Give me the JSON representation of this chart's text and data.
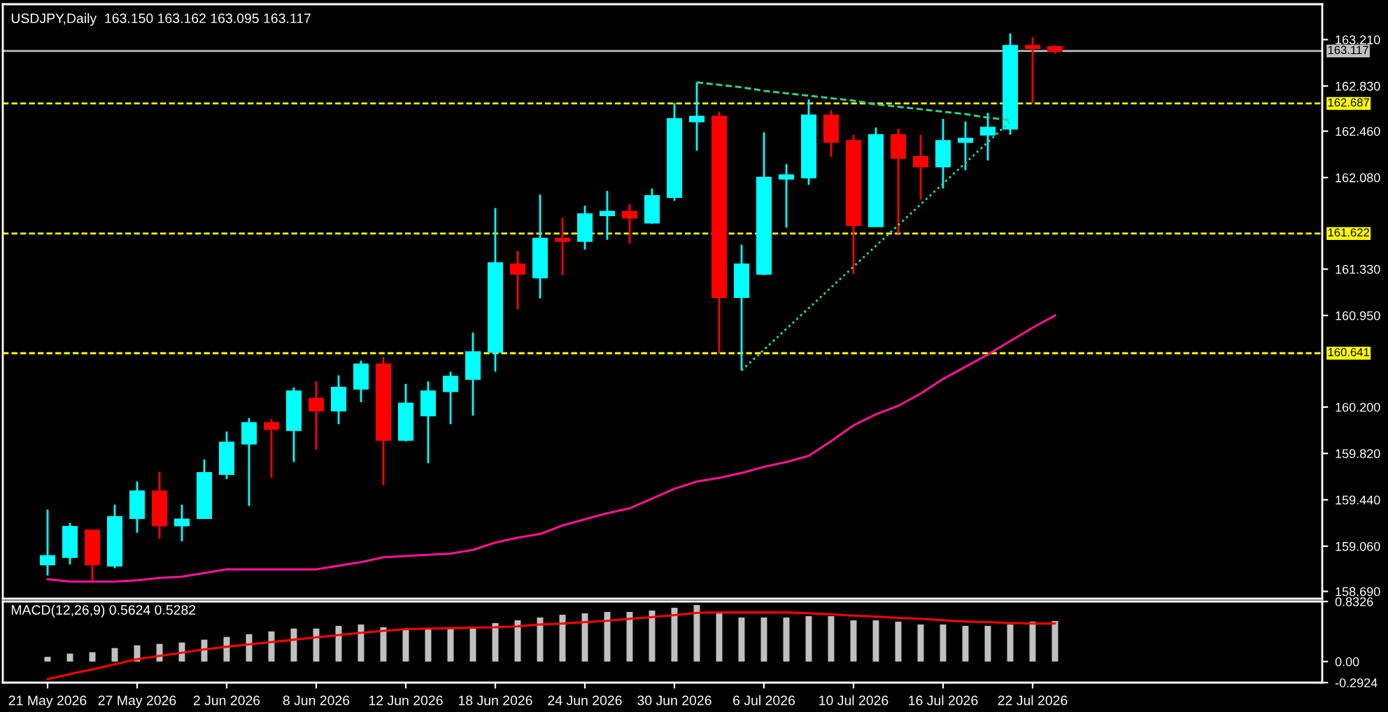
{
  "chart_data": [
    {
      "type": "candlestick",
      "title": "USDJPY,Daily  163.150 163.162 163.095 163.117",
      "categories": [
        null,
        null,
        null,
        null,
        null,
        null,
        null,
        null,
        null,
        null,
        null,
        null,
        null,
        null,
        null,
        null,
        null,
        null,
        null,
        null,
        null,
        null,
        null,
        null,
        null,
        null,
        null,
        null,
        null,
        null,
        null,
        null,
        null,
        null,
        null,
        null,
        null,
        null,
        null,
        null,
        null,
        null,
        null,
        null,
        null,
        null
      ],
      "ohlc": [
        [
          158.91,
          159.36,
          158.82,
          158.98
        ],
        [
          158.97,
          159.25,
          158.91,
          159.22
        ],
        [
          159.19,
          159.19,
          158.76,
          158.91
        ],
        [
          158.9,
          159.4,
          158.88,
          159.3
        ],
        [
          159.29,
          159.59,
          159.17,
          159.51
        ],
        [
          159.51,
          159.67,
          159.12,
          159.23
        ],
        [
          159.23,
          159.4,
          159.1,
          159.28
        ],
        [
          159.29,
          159.77,
          159.29,
          159.66
        ],
        [
          159.65,
          160.0,
          159.61,
          159.91
        ],
        [
          159.9,
          160.11,
          159.39,
          160.07
        ],
        [
          160.07,
          160.1,
          159.62,
          160.02
        ],
        [
          160.01,
          160.36,
          159.75,
          160.33
        ],
        [
          160.27,
          160.41,
          159.85,
          160.17
        ],
        [
          160.17,
          160.46,
          160.06,
          160.36
        ],
        [
          160.35,
          160.58,
          160.24,
          160.55
        ],
        [
          160.55,
          160.61,
          159.56,
          159.93
        ],
        [
          159.93,
          160.39,
          159.92,
          160.23
        ],
        [
          160.13,
          160.41,
          159.74,
          160.33
        ],
        [
          160.33,
          160.49,
          160.06,
          160.45
        ],
        [
          160.43,
          160.81,
          160.13,
          160.65
        ],
        [
          160.65,
          161.83,
          160.49,
          161.38
        ],
        [
          161.37,
          161.48,
          161.0,
          161.29
        ],
        [
          161.26,
          161.94,
          161.09,
          161.58
        ],
        [
          161.58,
          161.75,
          161.28,
          161.56
        ],
        [
          161.56,
          161.85,
          161.49,
          161.78
        ],
        [
          161.77,
          161.97,
          161.57,
          161.8
        ],
        [
          161.8,
          161.86,
          161.54,
          161.75
        ],
        [
          161.71,
          161.99,
          161.7,
          161.93
        ],
        [
          161.92,
          162.69,
          161.89,
          162.56
        ],
        [
          162.54,
          162.86,
          162.3,
          162.58
        ],
        [
          162.58,
          162.62,
          160.64,
          161.1
        ],
        [
          161.1,
          161.53,
          160.5,
          161.37
        ],
        [
          161.29,
          162.45,
          161.28,
          162.08
        ],
        [
          162.07,
          162.19,
          161.67,
          162.1
        ],
        [
          162.08,
          162.72,
          162.02,
          162.59
        ],
        [
          162.59,
          162.63,
          162.25,
          162.37
        ],
        [
          162.38,
          162.43,
          161.29,
          161.69
        ],
        [
          161.68,
          162.49,
          161.68,
          162.43
        ],
        [
          162.43,
          162.48,
          161.62,
          162.24
        ],
        [
          162.25,
          162.43,
          161.9,
          162.17
        ],
        [
          162.17,
          162.56,
          161.99,
          162.38
        ],
        [
          162.37,
          162.54,
          162.14,
          162.4
        ],
        [
          162.43,
          162.61,
          162.22,
          162.49
        ],
        [
          162.48,
          163.26,
          162.43,
          163.16
        ],
        [
          163.16,
          163.23,
          162.69,
          163.14
        ],
        [
          163.15,
          163.162,
          163.095,
          163.117
        ]
      ],
      "colors": [
        "#00ffff",
        "#00ffff",
        "#ff0000",
        "#00ffff",
        "#00ffff",
        "#ff0000",
        "#00ffff",
        "#00ffff",
        "#00ffff",
        "#00ffff",
        "#ff0000",
        "#00ffff",
        "#ff0000",
        "#00ffff",
        "#00ffff",
        "#ff0000",
        "#00ffff",
        "#00ffff",
        "#00ffff",
        "#00ffff",
        "#00ffff",
        "#ff0000",
        "#00ffff",
        "#ff0000",
        "#00ffff",
        "#00ffff",
        "#ff0000",
        "#00ffff",
        "#00ffff",
        "#00ffff",
        "#ff0000",
        "#00ffff",
        "#00ffff",
        "#00ffff",
        "#00ffff",
        "#ff0000",
        "#ff0000",
        "#00ffff",
        "#ff0000",
        "#ff0000",
        "#00ffff",
        "#00ffff",
        "#00ffff",
        "#00ffff",
        "#ff0000",
        "#ff0000"
      ],
      "series": [
        {
          "type": "line",
          "color": "#ff1493",
          "line_style": "solid",
          "values": [
            158.79,
            158.77,
            158.77,
            158.77,
            158.78,
            158.8,
            158.81,
            158.84,
            158.87,
            158.87,
            158.87,
            158.87,
            158.87,
            158.9,
            158.93,
            158.97,
            158.98,
            158.99,
            159.0,
            159.03,
            159.09,
            159.13,
            159.16,
            159.23,
            159.28,
            159.33,
            159.37,
            159.45,
            159.53,
            159.59,
            159.62,
            159.66,
            159.71,
            159.75,
            159.8,
            159.92,
            160.05,
            160.14,
            160.21,
            160.31,
            160.43,
            160.53,
            160.63,
            160.74,
            160.85,
            160.95
          ]
        },
        {
          "type": "line",
          "color": "#33cc88",
          "line_style": "dashed",
          "values": [
            null,
            null,
            null,
            null,
            null,
            null,
            null,
            null,
            null,
            null,
            null,
            null,
            null,
            null,
            null,
            null,
            null,
            null,
            null,
            null,
            null,
            null,
            null,
            null,
            null,
            null,
            null,
            null,
            null,
            162.86,
            162.84,
            162.82,
            162.79,
            162.77,
            162.75,
            162.73,
            162.71,
            162.68,
            162.66,
            162.64,
            162.62,
            162.6,
            162.57,
            162.55,
            null,
            null
          ]
        },
        {
          "type": "line",
          "color": "#33cc88",
          "line_style": "dotted",
          "values": [
            null,
            null,
            null,
            null,
            null,
            null,
            null,
            null,
            null,
            null,
            null,
            null,
            null,
            null,
            null,
            null,
            null,
            null,
            null,
            null,
            null,
            null,
            null,
            null,
            null,
            null,
            null,
            null,
            null,
            null,
            null,
            160.5,
            160.67,
            160.84,
            161.01,
            161.18,
            161.35,
            161.52,
            161.69,
            161.86,
            162.03,
            162.2,
            162.37,
            162.54,
            null,
            null
          ]
        }
      ],
      "ylim": [
        158.63,
        163.5
      ],
      "yticks": [
        {
          "value": 163.21,
          "label": "163.210"
        },
        {
          "value": 162.83,
          "label": "162.830"
        },
        {
          "value": 162.46,
          "label": "162.460"
        },
        {
          "value": 162.08,
          "label": "162.080"
        },
        {
          "value": 161.33,
          "label": "161.330"
        },
        {
          "value": 160.95,
          "label": "160.950"
        },
        {
          "value": 160.2,
          "label": "160.200"
        },
        {
          "value": 159.82,
          "label": "159.820"
        },
        {
          "value": 159.44,
          "label": "159.440"
        },
        {
          "value": 159.06,
          "label": "159.060"
        },
        {
          "value": 158.69,
          "label": "158.690"
        }
      ],
      "ref_lines": [
        {
          "axis": "y",
          "value": 163.117,
          "label": "163.117",
          "color": "#c0c0c0",
          "line_style": "solid"
        },
        {
          "axis": "y",
          "value": 162.687,
          "label": "162.687",
          "color": "#ffff00",
          "line_style": "dashed"
        },
        {
          "axis": "y",
          "value": 161.622,
          "label": "161.622",
          "color": "#ffff00",
          "line_style": "dashed"
        },
        {
          "axis": "y",
          "value": 160.641,
          "label": "160.641",
          "color": "#ffff00",
          "line_style": "dashed"
        }
      ],
      "tick_labels": "y"
    },
    {
      "type": "bar",
      "title": "MACD(12,26,9) 0.5624 0.5282",
      "categories": [
        "21 May 2026",
        null,
        null,
        null,
        "27 May 2026",
        null,
        null,
        null,
        "2 Jun 2026",
        null,
        null,
        null,
        "8 Jun 2026",
        null,
        null,
        null,
        "12 Jun 2026",
        null,
        null,
        null,
        "18 Jun 2026",
        null,
        null,
        null,
        "24 Jun 2026",
        null,
        null,
        null,
        "30 Jun 2026",
        null,
        null,
        null,
        "6 Jul 2026",
        null,
        null,
        null,
        "10 Jul 2026",
        null,
        null,
        null,
        "16 Jul 2026",
        null,
        null,
        null,
        "22 Jul 2026",
        null
      ],
      "series": [
        {
          "type": "bar",
          "color": "#c0c0c0",
          "values": [
            0.065,
            0.11,
            0.129,
            0.187,
            0.225,
            0.245,
            0.264,
            0.303,
            0.341,
            0.38,
            0.418,
            0.457,
            0.457,
            0.495,
            0.514,
            0.476,
            0.457,
            0.457,
            0.457,
            0.457,
            0.534,
            0.572,
            0.611,
            0.649,
            0.669,
            0.688,
            0.688,
            0.707,
            0.746,
            0.784,
            0.675,
            0.611,
            0.611,
            0.611,
            0.63,
            0.63,
            0.572,
            0.572,
            0.553,
            0.514,
            0.514,
            0.495,
            0.495,
            0.514,
            0.553,
            0.5624
          ]
        },
        {
          "type": "line",
          "color": "#ff0000",
          "line_style": "solid",
          "values": [
            -0.243,
            -0.173,
            -0.109,
            -0.038,
            0.033,
            0.078,
            0.123,
            0.168,
            0.206,
            0.238,
            0.27,
            0.303,
            0.335,
            0.367,
            0.399,
            0.425,
            0.45,
            0.457,
            0.463,
            0.47,
            0.476,
            0.489,
            0.514,
            0.527,
            0.547,
            0.566,
            0.592,
            0.617,
            0.643,
            0.675,
            0.681,
            0.681,
            0.681,
            0.681,
            0.669,
            0.656,
            0.637,
            0.624,
            0.604,
            0.592,
            0.572,
            0.553,
            0.547,
            0.534,
            0.527,
            0.5282
          ]
        }
      ],
      "ylim": [
        -0.2924,
        0.8326
      ],
      "yticks": [
        {
          "value": 0.8326,
          "label": "0.8326"
        },
        {
          "value": 0,
          "label": "0.00"
        },
        {
          "value": -0.2924,
          "label": "-0.2924"
        }
      ]
    }
  ]
}
